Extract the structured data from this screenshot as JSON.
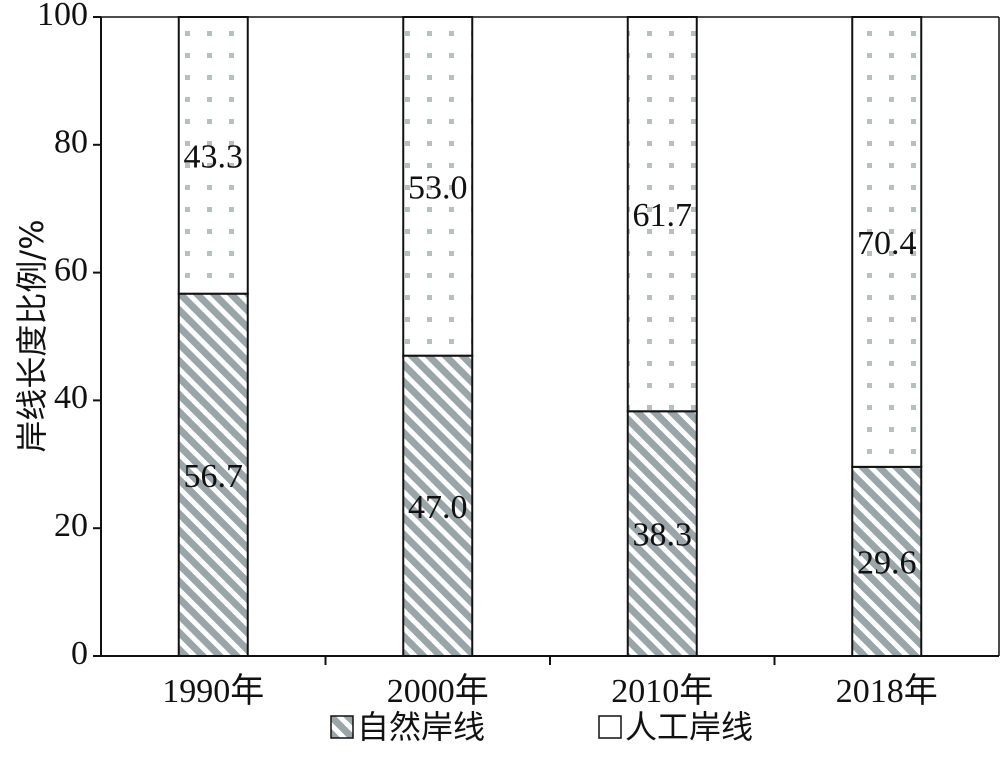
{
  "chart_data": {
    "type": "bar",
    "stacked": true,
    "categories": [
      "1990年",
      "2000年",
      "2010年",
      "2018年"
    ],
    "series": [
      {
        "name": "自然岸线",
        "values": [
          56.7,
          47.0,
          38.3,
          29.6
        ],
        "value_labels": [
          "56.7",
          "47.0",
          "38.3",
          "29.6"
        ],
        "pattern": "diagonal-hatch",
        "color": "#9aa5aa"
      },
      {
        "name": "人工岸线",
        "values": [
          43.3,
          53.0,
          61.7,
          70.4
        ],
        "value_labels": [
          "43.3",
          "53.0",
          "61.7",
          "70.4"
        ],
        "pattern": "dots",
        "color": "#b5c0c4"
      }
    ],
    "ylabel": "岸线长度比例/%",
    "xlabel": "",
    "ylim": [
      0,
      100
    ],
    "yticks": [
      0,
      20,
      40,
      60,
      80,
      100
    ],
    "ytick_labels": [
      "0",
      "20",
      "40",
      "60",
      "80",
      "100"
    ],
    "grid": false,
    "legend": {
      "placement": "bottom",
      "entries": [
        "自然岸线",
        "人工岸线"
      ]
    }
  }
}
